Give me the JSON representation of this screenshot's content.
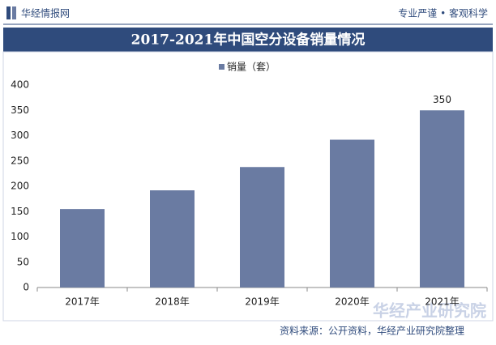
{
  "header": {
    "brand": "华经情报网",
    "slogan": "专业严谨 • 客观科学"
  },
  "chart_data": {
    "type": "bar",
    "title": "2017-2021年中国空分设备销量情况",
    "categories": [
      "2017年",
      "2018年",
      "2019年",
      "2020年",
      "2021年"
    ],
    "series": [
      {
        "name": "销量（套）",
        "color": "#6a7ba2",
        "values": [
          155,
          192,
          238,
          292,
          350
        ],
        "value_labels": [
          null,
          null,
          null,
          null,
          "350"
        ]
      }
    ],
    "ylim": [
      0,
      400
    ],
    "yticks": [
      0,
      50,
      100,
      150,
      200,
      250,
      300,
      350,
      400
    ],
    "grid": false
  },
  "footer": {
    "source": "资料来源：公开资料，华经产业研究院整理",
    "watermark": "华经产业研究院",
    "watermark_url": "www.huaon.com"
  }
}
